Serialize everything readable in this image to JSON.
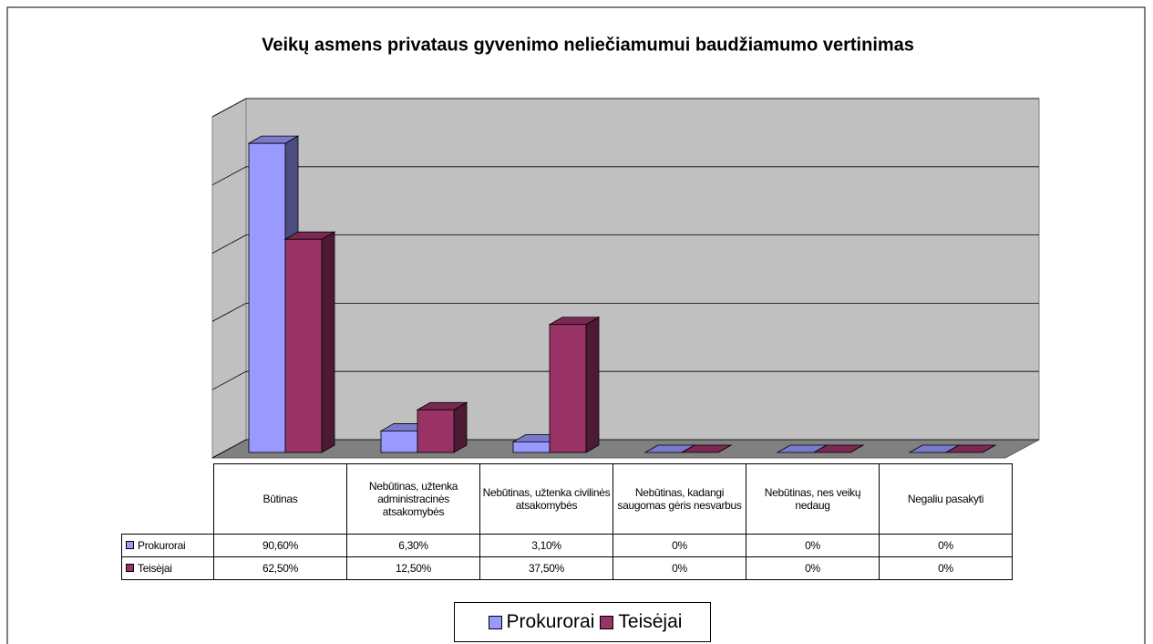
{
  "chart_data": {
    "type": "bar3d",
    "title": "Veikų asmens privataus gyvenimo neliečiamumui baudžiamumo vertinimas",
    "categories": [
      "Būtinas",
      "Nebūtinas, užtenka administracinės atsakomybės",
      "Nebūtinas, užtenka civilinės atsakomybės",
      "Nebūtinas, kadangi saugomas gėris nesvarbus",
      "Nebūtinas, nes veikų nedaug",
      "Negaliu pasakyti"
    ],
    "series": [
      {
        "name": "Prokurorai",
        "color": "#9999ff",
        "values": [
          90.6,
          6.3,
          3.1,
          0,
          0,
          0
        ],
        "value_labels": [
          "90,60%",
          "6,30%",
          "3,10%",
          "0%",
          "0%",
          "0%"
        ]
      },
      {
        "name": "Teisėjai",
        "color": "#993366",
        "values": [
          62.5,
          12.5,
          37.5,
          0,
          0,
          0
        ],
        "value_labels": [
          "62,50%",
          "12,50%",
          "37,50%",
          "0%",
          "0%",
          "0%"
        ]
      }
    ],
    "ylim": [
      0,
      100
    ],
    "yticks": [
      0,
      20,
      40,
      60,
      80,
      100
    ],
    "grid": true
  }
}
